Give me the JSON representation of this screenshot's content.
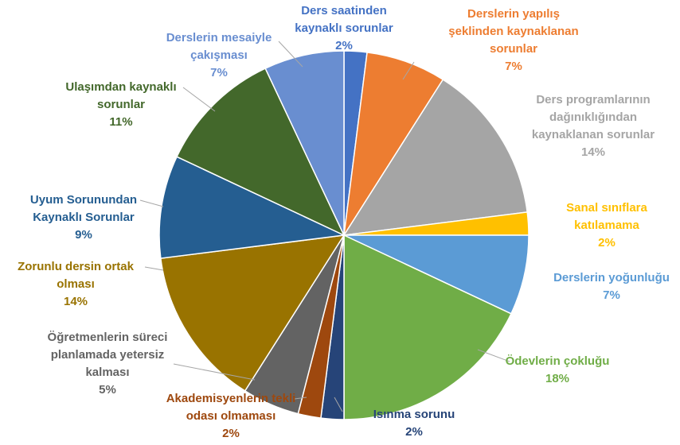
{
  "chart_data": {
    "type": "pie",
    "categories": [
      "Ders saatinden\nkaynaklı sorunlar",
      "Derslerin yapılış\nşeklinden kaynaklanan\nsorunlar",
      "Ders programlarının\ndağınıklığından\nkaynaklanan sorunlar",
      "Sanal sınıflara\nkatılamama",
      "Derslerin yoğunluğu",
      "Ödevlerin çokluğu",
      "Isınma sorunu",
      "Akademisyenlerin tekli\nodası olmaması",
      "Öğretmenlerin süreci\nplanlamada yetersiz\nkalması",
      "Zorunlu dersin ortak\nolması",
      "Uyum Sorunundan\nKaynaklı Sorunlar",
      "Ulaşımdan kaynaklı\nsorunlar",
      "Derslerin mesaiyle\nçakışması"
    ],
    "values": [
      2,
      7,
      14,
      2,
      7,
      18,
      2,
      2,
      5,
      14,
      9,
      11,
      7
    ],
    "value_labels": [
      "2%",
      "7%",
      "14%",
      "2%",
      "7%",
      "18%",
      "2%",
      "2%",
      "5%",
      "14%",
      "9%",
      "11%",
      "7%"
    ],
    "colors": [
      "#4472c4",
      "#ed7d31",
      "#a5a5a5",
      "#ffc000",
      "#5b9bd5",
      "#70ad47",
      "#264478",
      "#9e480e",
      "#636363",
      "#997300",
      "#255e91",
      "#43682b",
      "#698ed0"
    ]
  }
}
